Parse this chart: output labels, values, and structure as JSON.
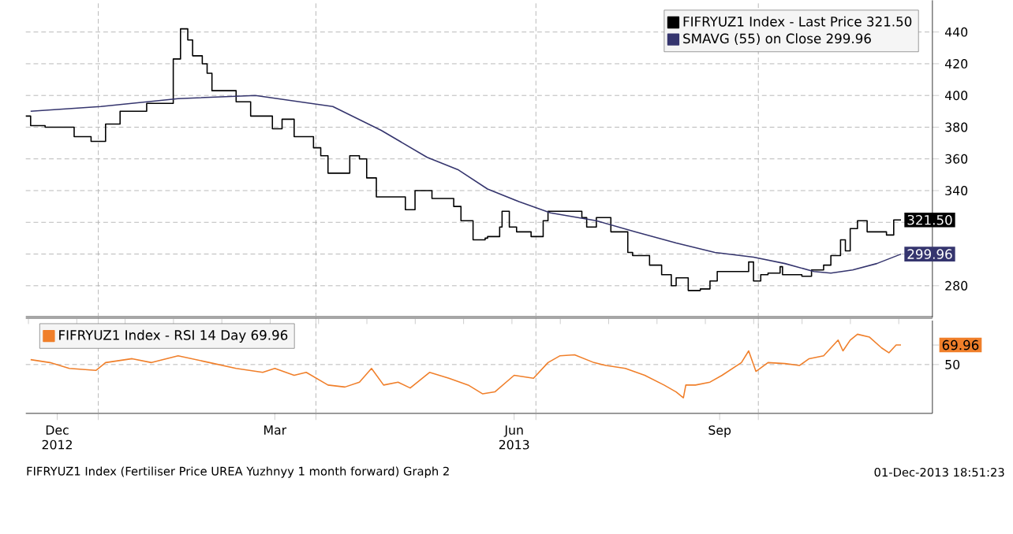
{
  "chart_data": [
    {
      "type": "line",
      "xlim": [
        "2012-12-02",
        "2013-12-12"
      ],
      "ylim": [
        260,
        460
      ],
      "xticks": [
        {
          "value": "2013-01-01",
          "label": null
        },
        {
          "value": "2013-04-01",
          "label": null
        },
        {
          "value": "2013-07-01",
          "label": null
        },
        {
          "value": "2013-10-01",
          "label": null
        }
      ],
      "yticks": [
        280,
        {
          "value": 300,
          "label": null
        },
        {
          "value": 320,
          "label": null
        },
        340,
        360,
        380,
        400,
        420,
        440
      ],
      "grid": true,
      "legend": "top right",
      "tick_labels": "y",
      "series": [
        {
          "name": "FIFRYUZ1 Index - Last Price 321.50",
          "type": "step",
          "color": "#000000",
          "x": [
            "2012-12-02",
            "2012-12-04",
            "2012-12-10",
            "2012-12-22",
            "2012-12-29",
            "2013-01-04",
            "2013-01-10",
            "2013-01-21",
            "2013-02-01",
            "2013-02-04",
            "2013-02-07",
            "2013-02-09",
            "2013-02-13",
            "2013-02-15",
            "2013-02-17",
            "2013-02-27",
            "2013-03-05",
            "2013-03-14",
            "2013-03-18",
            "2013-03-23",
            "2013-03-31",
            "2013-04-03",
            "2013-04-06",
            "2013-04-15",
            "2013-04-19",
            "2013-04-22",
            "2013-04-26",
            "2013-05-08",
            "2013-05-12",
            "2013-05-19",
            "2013-05-28",
            "2013-05-31",
            "2013-06-05",
            "2013-06-10",
            "2013-06-11",
            "2013-06-16",
            "2013-06-17",
            "2013-06-20",
            "2013-06-23",
            "2013-06-29",
            "2013-07-04",
            "2013-07-06",
            "2013-07-20",
            "2013-07-22",
            "2013-07-26",
            "2013-08-01",
            "2013-08-08",
            "2013-08-10",
            "2013-08-17",
            "2013-08-22",
            "2013-08-26",
            "2013-08-28",
            "2013-09-02",
            "2013-09-07",
            "2013-09-11",
            "2013-09-14",
            "2013-09-27",
            "2013-09-29",
            "2013-10-02",
            "2013-10-05",
            "2013-10-10",
            "2013-10-11",
            "2013-10-19",
            "2013-10-23",
            "2013-10-28",
            "2013-10-31",
            "2013-11-04",
            "2013-11-06",
            "2013-11-08",
            "2013-11-11",
            "2013-11-15",
            "2013-11-23",
            "2013-11-26",
            "2013-11-29"
          ],
          "values": [
            387,
            381,
            380,
            374,
            371,
            382,
            390,
            395,
            423,
            442,
            435,
            425,
            420,
            414,
            403,
            396,
            387,
            379,
            385,
            374,
            367,
            362,
            351,
            362,
            360,
            348,
            336,
            328,
            340,
            335,
            330,
            321,
            309,
            310,
            311,
            317,
            327,
            317,
            314,
            311,
            321,
            327,
            323,
            317,
            323,
            314,
            301,
            299,
            293,
            287,
            280,
            285,
            277,
            278,
            283,
            289,
            295,
            283,
            287,
            288,
            292,
            287,
            286,
            290,
            293,
            299,
            309,
            302,
            316,
            321,
            314,
            312,
            321.5,
            321.5
          ],
          "value_labels": [
            null,
            null,
            null,
            null,
            null,
            null,
            null,
            null,
            null,
            null,
            null,
            null,
            null,
            null,
            null,
            null,
            null,
            null,
            null,
            null,
            null,
            null,
            null,
            null,
            null,
            null,
            null,
            null,
            null,
            null,
            null,
            null,
            null,
            null,
            null,
            null,
            null,
            null,
            null,
            null,
            null,
            null,
            null,
            null,
            null,
            null,
            null,
            null,
            null,
            null,
            null,
            null,
            null,
            null,
            null,
            null,
            null,
            null,
            null,
            null,
            null,
            null,
            null,
            null,
            null,
            null,
            null,
            null,
            null,
            null,
            null,
            null,
            null,
            "321.50"
          ]
        },
        {
          "name": "SMAVG (55) on Close 299.96",
          "color": "#35356e",
          "x": [
            "2012-12-04",
            "2013-01-02",
            "2013-02-03",
            "2013-03-07",
            "2013-04-08",
            "2013-04-28",
            "2013-05-17",
            "2013-05-30",
            "2013-06-11",
            "2013-06-24",
            "2013-07-07",
            "2013-07-26",
            "2013-08-11",
            "2013-08-28",
            "2013-09-13",
            "2013-09-29",
            "2013-10-12",
            "2013-10-24",
            "2013-10-31",
            "2013-11-09",
            "2013-11-19",
            "2013-11-29"
          ],
          "values": [
            390,
            393,
            398,
            400,
            393,
            378,
            361,
            353,
            341,
            333,
            326,
            321,
            314,
            307,
            301,
            298,
            294,
            289,
            288,
            290,
            294,
            299.96
          ],
          "value_labels": [
            null,
            null,
            null,
            null,
            null,
            null,
            null,
            null,
            null,
            null,
            null,
            null,
            null,
            null,
            null,
            null,
            null,
            null,
            null,
            null,
            null,
            "299.96"
          ]
        }
      ]
    },
    {
      "type": "line",
      "xlim": [
        "2012-12-02",
        "2013-12-12"
      ],
      "ylim": [
        0,
        95
      ],
      "xticks": [
        {
          "value": "2012-12-15",
          "label": "Dec 2012"
        },
        {
          "value": "2013-01-01",
          "label": null
        },
        {
          "value": "2013-03-15",
          "label": "Mar"
        },
        {
          "value": "2013-04-01",
          "label": null
        },
        {
          "value": "2013-06-22",
          "label": "Jun 2013"
        },
        {
          "value": "2013-07-01",
          "label": null
        },
        {
          "value": "2013-09-15",
          "label": "Sep"
        },
        {
          "value": "2013-10-01",
          "label": null
        }
      ],
      "yticks": [
        50,
        {
          "value": 69.96,
          "label": "69.96"
        }
      ],
      "grid": true,
      "legend": "top left",
      "annotations": [
        "FIFRYUZ1 Index (Fertiliser Price UREA Yuzhnyy 1 month forward) Graph 2",
        "01-Dec-2013 18:51:23"
      ],
      "series": [
        {
          "name": "FIFRYUZ1 Index - RSI 14 Day 69.96",
          "color": "#f07f2a",
          "x": [
            "2012-12-04",
            "2012-12-12",
            "2012-12-20",
            "2012-12-31",
            "2013-01-04",
            "2013-01-15",
            "2013-01-23",
            "2013-02-03",
            "2013-02-16",
            "2013-02-27",
            "2013-03-10",
            "2013-03-15",
            "2013-03-23",
            "2013-03-28",
            "2013-04-06",
            "2013-04-13",
            "2013-04-19",
            "2013-04-24",
            "2013-04-29",
            "2013-05-05",
            "2013-05-10",
            "2013-05-18",
            "2013-05-26",
            "2013-06-03",
            "2013-06-09",
            "2013-06-14",
            "2013-06-22",
            "2013-06-30",
            "2013-07-06",
            "2013-07-11",
            "2013-07-17",
            "2013-07-25",
            "2013-07-30",
            "2013-08-07",
            "2013-08-15",
            "2013-08-23",
            "2013-08-28",
            "2013-08-31",
            "2013-09-01",
            "2013-09-05",
            "2013-09-11",
            "2013-09-16",
            "2013-09-24",
            "2013-09-27",
            "2013-09-30",
            "2013-10-05",
            "2013-10-12",
            "2013-10-18",
            "2013-10-22",
            "2013-10-28",
            "2013-10-31",
            "2013-11-03",
            "2013-11-05",
            "2013-11-08",
            "2013-11-11",
            "2013-11-16",
            "2013-11-21",
            "2013-11-24",
            "2013-11-27",
            "2013-11-29"
          ],
          "values": [
            55,
            52,
            46,
            44,
            52,
            56,
            52,
            59,
            52,
            46,
            42,
            46,
            39,
            42,
            29,
            27,
            32,
            46,
            29,
            32,
            26,
            42,
            36,
            29,
            20,
            22,
            39,
            36,
            52,
            59,
            60,
            52,
            49,
            46,
            39,
            29,
            22,
            16,
            29,
            29,
            32,
            39,
            52,
            64,
            43,
            52,
            51,
            49,
            56,
            59,
            67,
            75,
            64,
            75,
            81,
            78,
            67,
            62,
            70,
            69.96
          ]
        }
      ]
    }
  ]
}
